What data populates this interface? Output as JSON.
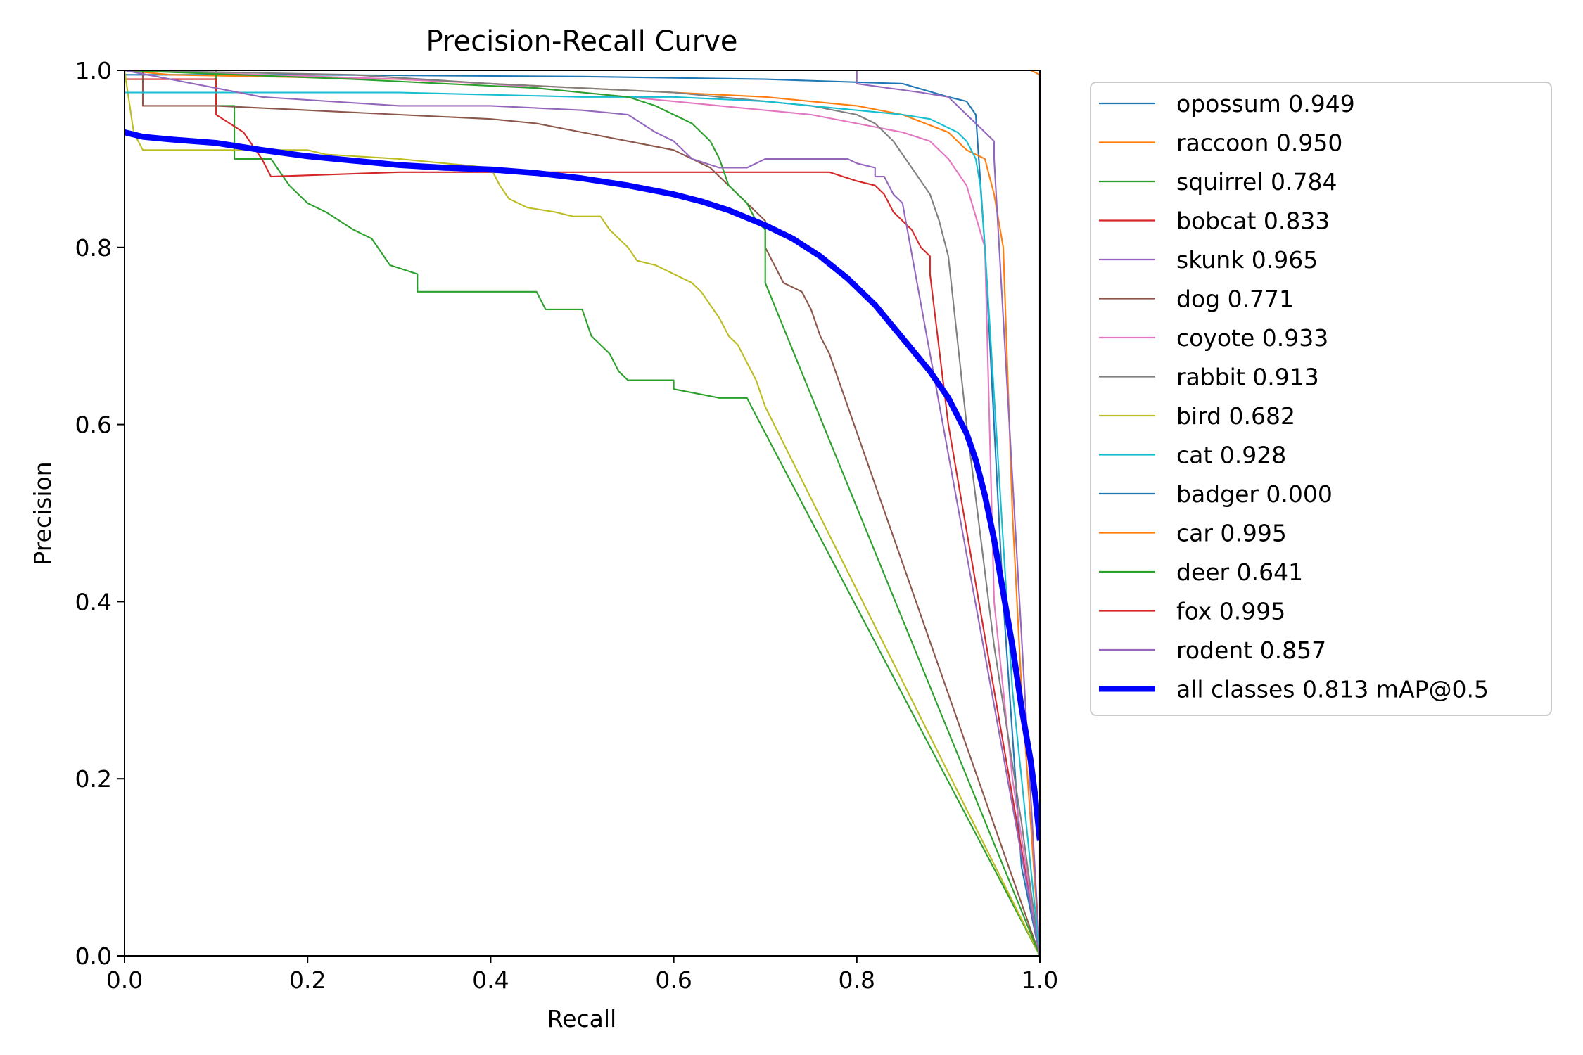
{
  "chart_data": {
    "type": "line",
    "title": "Precision-Recall Curve",
    "xlabel": "Recall",
    "ylabel": "Precision",
    "xlim": [
      0.0,
      1.0
    ],
    "ylim": [
      0.0,
      1.0
    ],
    "xticks": [
      "0.0",
      "0.2",
      "0.4",
      "0.6",
      "0.8",
      "1.0"
    ],
    "yticks": [
      "0.0",
      "0.2",
      "0.4",
      "0.6",
      "0.8",
      "1.0"
    ],
    "grid": false,
    "legend_position": "outside-right-top",
    "series": [
      {
        "name": "opossum 0.949",
        "color": "#1f77b4",
        "width": 1.5,
        "points": [
          [
            0,
            0.995
          ],
          [
            0.2,
            0.995
          ],
          [
            0.5,
            0.993
          ],
          [
            0.7,
            0.99
          ],
          [
            0.85,
            0.985
          ],
          [
            0.9,
            0.97
          ],
          [
            0.92,
            0.965
          ],
          [
            0.93,
            0.95
          ],
          [
            0.94,
            0.8
          ],
          [
            0.96,
            0.4
          ],
          [
            0.98,
            0.1
          ],
          [
            1.0,
            0.0
          ]
        ]
      },
      {
        "name": "raccoon 0.950",
        "color": "#ff7f0e",
        "width": 1.5,
        "points": [
          [
            0,
            1.0
          ],
          [
            0.05,
            0.995
          ],
          [
            0.3,
            0.99
          ],
          [
            0.5,
            0.98
          ],
          [
            0.6,
            0.975
          ],
          [
            0.7,
            0.97
          ],
          [
            0.8,
            0.96
          ],
          [
            0.85,
            0.95
          ],
          [
            0.9,
            0.93
          ],
          [
            0.92,
            0.91
          ],
          [
            0.94,
            0.9
          ],
          [
            0.95,
            0.86
          ],
          [
            0.96,
            0.8
          ],
          [
            0.97,
            0.5
          ],
          [
            0.98,
            0.3
          ],
          [
            1.0,
            0.0
          ]
        ]
      },
      {
        "name": "squirrel 0.784",
        "color": "#2ca02c",
        "width": 1.5,
        "points": [
          [
            0,
            1.0
          ],
          [
            0.1,
            1.0
          ],
          [
            0.1,
            0.96
          ],
          [
            0.12,
            0.96
          ],
          [
            0.12,
            0.9
          ],
          [
            0.16,
            0.9
          ],
          [
            0.18,
            0.87
          ],
          [
            0.2,
            0.85
          ],
          [
            0.22,
            0.84
          ],
          [
            0.25,
            0.82
          ],
          [
            0.27,
            0.81
          ],
          [
            0.29,
            0.78
          ],
          [
            0.32,
            0.77
          ],
          [
            0.32,
            0.75
          ],
          [
            0.45,
            0.75
          ],
          [
            0.46,
            0.73
          ],
          [
            0.5,
            0.73
          ],
          [
            0.51,
            0.7
          ],
          [
            0.53,
            0.68
          ],
          [
            0.54,
            0.66
          ],
          [
            0.55,
            0.65
          ],
          [
            0.6,
            0.65
          ],
          [
            0.6,
            0.64
          ],
          [
            0.65,
            0.63
          ],
          [
            0.68,
            0.63
          ],
          [
            0.69,
            0.61
          ],
          [
            1.0,
            0.0
          ]
        ]
      },
      {
        "name": "bobcat 0.833",
        "color": "#d62728",
        "width": 1.5,
        "points": [
          [
            0,
            0.99
          ],
          [
            0.1,
            0.99
          ],
          [
            0.1,
            0.95
          ],
          [
            0.13,
            0.93
          ],
          [
            0.15,
            0.9
          ],
          [
            0.16,
            0.88
          ],
          [
            0.3,
            0.885
          ],
          [
            0.5,
            0.885
          ],
          [
            0.7,
            0.885
          ],
          [
            0.77,
            0.885
          ],
          [
            0.8,
            0.875
          ],
          [
            0.82,
            0.87
          ],
          [
            0.83,
            0.86
          ],
          [
            0.84,
            0.84
          ],
          [
            0.85,
            0.83
          ],
          [
            0.86,
            0.82
          ],
          [
            0.87,
            0.8
          ],
          [
            0.88,
            0.79
          ],
          [
            0.88,
            0.77
          ],
          [
            0.9,
            0.6
          ],
          [
            1.0,
            0.0
          ]
        ]
      },
      {
        "name": "skunk 0.965",
        "color": "#9467bd",
        "width": 1.5,
        "points": [
          [
            0,
            1.0
          ],
          [
            0.7,
            1.0
          ],
          [
            0.8,
            1.0
          ],
          [
            0.8,
            0.985
          ],
          [
            0.87,
            0.975
          ],
          [
            0.9,
            0.97
          ],
          [
            0.91,
            0.96
          ],
          [
            0.92,
            0.95
          ],
          [
            0.93,
            0.94
          ],
          [
            0.95,
            0.92
          ],
          [
            0.95,
            0.9
          ],
          [
            1.0,
            0.0
          ]
        ]
      },
      {
        "name": "dog 0.771",
        "color": "#8c564b",
        "width": 1.5,
        "points": [
          [
            0,
            1.0
          ],
          [
            0.02,
            1.0
          ],
          [
            0.02,
            0.96
          ],
          [
            0.1,
            0.96
          ],
          [
            0.2,
            0.955
          ],
          [
            0.3,
            0.95
          ],
          [
            0.4,
            0.945
          ],
          [
            0.45,
            0.94
          ],
          [
            0.5,
            0.93
          ],
          [
            0.55,
            0.92
          ],
          [
            0.6,
            0.91
          ],
          [
            0.62,
            0.9
          ],
          [
            0.64,
            0.89
          ],
          [
            0.65,
            0.88
          ],
          [
            0.66,
            0.87
          ],
          [
            0.67,
            0.86
          ],
          [
            0.68,
            0.85
          ],
          [
            0.69,
            0.84
          ],
          [
            0.7,
            0.83
          ],
          [
            0.7,
            0.8
          ],
          [
            0.71,
            0.78
          ],
          [
            0.72,
            0.76
          ],
          [
            0.74,
            0.75
          ],
          [
            0.75,
            0.73
          ],
          [
            0.76,
            0.7
          ],
          [
            0.77,
            0.68
          ],
          [
            1.0,
            0.0
          ]
        ]
      },
      {
        "name": "coyote 0.933",
        "color": "#e377c2",
        "width": 1.5,
        "points": [
          [
            0,
            1.0
          ],
          [
            0.3,
            0.99
          ],
          [
            0.4,
            0.985
          ],
          [
            0.45,
            0.98
          ],
          [
            0.5,
            0.975
          ],
          [
            0.55,
            0.97
          ],
          [
            0.6,
            0.965
          ],
          [
            0.65,
            0.96
          ],
          [
            0.7,
            0.955
          ],
          [
            0.75,
            0.95
          ],
          [
            0.8,
            0.94
          ],
          [
            0.85,
            0.93
          ],
          [
            0.88,
            0.92
          ],
          [
            0.9,
            0.9
          ],
          [
            0.92,
            0.87
          ],
          [
            0.94,
            0.8
          ],
          [
            0.95,
            0.4
          ],
          [
            0.97,
            0.2
          ],
          [
            1.0,
            0.0
          ]
        ]
      },
      {
        "name": "rabbit 0.913",
        "color": "#7f7f7f",
        "width": 1.5,
        "points": [
          [
            0,
            1.0
          ],
          [
            0.25,
            0.995
          ],
          [
            0.4,
            0.985
          ],
          [
            0.5,
            0.98
          ],
          [
            0.6,
            0.975
          ],
          [
            0.7,
            0.965
          ],
          [
            0.75,
            0.96
          ],
          [
            0.8,
            0.95
          ],
          [
            0.82,
            0.94
          ],
          [
            0.84,
            0.92
          ],
          [
            0.86,
            0.89
          ],
          [
            0.88,
            0.86
          ],
          [
            0.89,
            0.83
          ],
          [
            0.9,
            0.79
          ],
          [
            0.92,
            0.6
          ],
          [
            0.95,
            0.35
          ],
          [
            0.98,
            0.15
          ],
          [
            1.0,
            0.0
          ]
        ]
      },
      {
        "name": "bird 0.682",
        "color": "#bcbd22",
        "width": 1.5,
        "points": [
          [
            0,
            1.0
          ],
          [
            0.01,
            0.93
          ],
          [
            0.02,
            0.91
          ],
          [
            0.2,
            0.91
          ],
          [
            0.22,
            0.905
          ],
          [
            0.3,
            0.9
          ],
          [
            0.35,
            0.895
          ],
          [
            0.4,
            0.89
          ],
          [
            0.41,
            0.87
          ],
          [
            0.42,
            0.855
          ],
          [
            0.44,
            0.845
          ],
          [
            0.47,
            0.84
          ],
          [
            0.49,
            0.835
          ],
          [
            0.52,
            0.835
          ],
          [
            0.53,
            0.82
          ],
          [
            0.55,
            0.8
          ],
          [
            0.56,
            0.785
          ],
          [
            0.58,
            0.78
          ],
          [
            0.6,
            0.77
          ],
          [
            0.62,
            0.76
          ],
          [
            0.63,
            0.75
          ],
          [
            0.64,
            0.735
          ],
          [
            0.65,
            0.72
          ],
          [
            0.66,
            0.7
          ],
          [
            0.67,
            0.69
          ],
          [
            0.68,
            0.67
          ],
          [
            0.69,
            0.65
          ],
          [
            0.7,
            0.62
          ],
          [
            1.0,
            0.0
          ]
        ]
      },
      {
        "name": "cat 0.928",
        "color": "#17becf",
        "width": 1.5,
        "points": [
          [
            0,
            0.975
          ],
          [
            0.3,
            0.975
          ],
          [
            0.5,
            0.97
          ],
          [
            0.6,
            0.97
          ],
          [
            0.7,
            0.965
          ],
          [
            0.75,
            0.96
          ],
          [
            0.8,
            0.955
          ],
          [
            0.85,
            0.95
          ],
          [
            0.88,
            0.945
          ],
          [
            0.9,
            0.935
          ],
          [
            0.91,
            0.93
          ],
          [
            0.92,
            0.92
          ],
          [
            0.93,
            0.9
          ],
          [
            0.935,
            0.87
          ],
          [
            0.94,
            0.8
          ],
          [
            0.97,
            0.3
          ],
          [
            1.0,
            0.0
          ]
        ]
      },
      {
        "name": "badger 0.000",
        "color": "#1f77b4",
        "width": 1.5,
        "points": [
          [
            0,
            0
          ],
          [
            1.0,
            0
          ]
        ]
      },
      {
        "name": "car 0.995",
        "color": "#ff7f0e",
        "width": 1.5,
        "points": [
          [
            0,
            1.0
          ],
          [
            0.96,
            1.0
          ],
          [
            0.99,
            1.0
          ],
          [
            1.0,
            0.995
          ],
          [
            1.0,
            0.0
          ]
        ]
      },
      {
        "name": "deer 0.641",
        "color": "#2ca02c",
        "width": 1.5,
        "points": [
          [
            0,
            1.0
          ],
          [
            0.25,
            0.99
          ],
          [
            0.35,
            0.985
          ],
          [
            0.45,
            0.98
          ],
          [
            0.5,
            0.975
          ],
          [
            0.55,
            0.97
          ],
          [
            0.58,
            0.96
          ],
          [
            0.6,
            0.95
          ],
          [
            0.62,
            0.94
          ],
          [
            0.63,
            0.93
          ],
          [
            0.64,
            0.92
          ],
          [
            0.65,
            0.9
          ],
          [
            0.66,
            0.87
          ],
          [
            0.67,
            0.86
          ],
          [
            0.68,
            0.85
          ],
          [
            0.69,
            0.83
          ],
          [
            0.7,
            0.82
          ],
          [
            0.7,
            0.76
          ],
          [
            1.0,
            0.0
          ]
        ]
      },
      {
        "name": "fox 0.995",
        "color": "#d62728",
        "width": 1.5,
        "points": [
          [
            0,
            1.0
          ],
          [
            0.999,
            1.0
          ],
          [
            1.0,
            1.0
          ],
          [
            1.0,
            0.0
          ]
        ]
      },
      {
        "name": "rodent 0.857",
        "color": "#9467bd",
        "width": 1.5,
        "points": [
          [
            0,
            1.0
          ],
          [
            0.1,
            0.98
          ],
          [
            0.15,
            0.97
          ],
          [
            0.3,
            0.96
          ],
          [
            0.4,
            0.96
          ],
          [
            0.5,
            0.955
          ],
          [
            0.55,
            0.95
          ],
          [
            0.58,
            0.93
          ],
          [
            0.6,
            0.92
          ],
          [
            0.62,
            0.9
          ],
          [
            0.65,
            0.89
          ],
          [
            0.68,
            0.89
          ],
          [
            0.7,
            0.9
          ],
          [
            0.75,
            0.9
          ],
          [
            0.79,
            0.9
          ],
          [
            0.8,
            0.895
          ],
          [
            0.82,
            0.89
          ],
          [
            0.82,
            0.88
          ],
          [
            0.83,
            0.88
          ],
          [
            0.84,
            0.86
          ],
          [
            0.85,
            0.85
          ],
          [
            1.0,
            0.0
          ]
        ]
      },
      {
        "name": "all classes 0.813 mAP@0.5",
        "color": "#0000ff",
        "width": 6,
        "points": [
          [
            0,
            0.93
          ],
          [
            0.02,
            0.925
          ],
          [
            0.05,
            0.922
          ],
          [
            0.1,
            0.918
          ],
          [
            0.15,
            0.91
          ],
          [
            0.2,
            0.903
          ],
          [
            0.25,
            0.898
          ],
          [
            0.3,
            0.893
          ],
          [
            0.35,
            0.89
          ],
          [
            0.4,
            0.888
          ],
          [
            0.45,
            0.884
          ],
          [
            0.5,
            0.878
          ],
          [
            0.55,
            0.87
          ],
          [
            0.6,
            0.86
          ],
          [
            0.63,
            0.852
          ],
          [
            0.66,
            0.842
          ],
          [
            0.7,
            0.825
          ],
          [
            0.73,
            0.81
          ],
          [
            0.76,
            0.79
          ],
          [
            0.79,
            0.765
          ],
          [
            0.82,
            0.735
          ],
          [
            0.84,
            0.71
          ],
          [
            0.86,
            0.685
          ],
          [
            0.88,
            0.66
          ],
          [
            0.9,
            0.63
          ],
          [
            0.92,
            0.59
          ],
          [
            0.93,
            0.56
          ],
          [
            0.94,
            0.52
          ],
          [
            0.95,
            0.47
          ],
          [
            0.96,
            0.41
          ],
          [
            0.97,
            0.35
          ],
          [
            0.98,
            0.28
          ],
          [
            0.99,
            0.22
          ],
          [
            0.995,
            0.18
          ],
          [
            1.0,
            0.13
          ]
        ]
      }
    ]
  }
}
